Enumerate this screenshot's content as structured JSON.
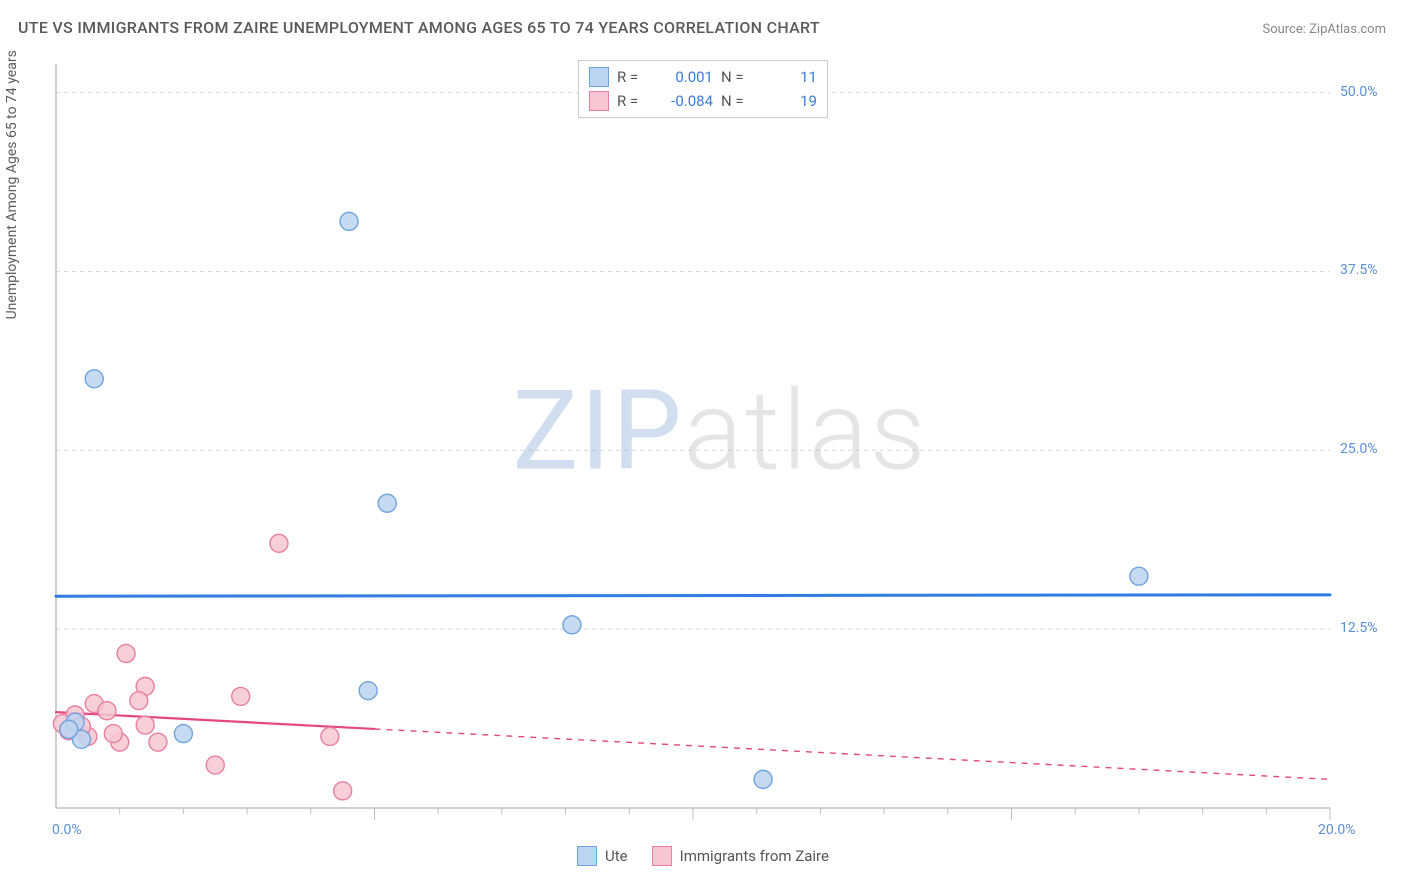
{
  "title": "UTE VS IMMIGRANTS FROM ZAIRE UNEMPLOYMENT AMONG AGES 65 TO 74 YEARS CORRELATION CHART",
  "source": "Source: ZipAtlas.com",
  "y_axis_label": "Unemployment Among Ages 65 to 74 years",
  "watermark": {
    "zip": "ZIP",
    "atlas": "atlas"
  },
  "chart": {
    "type": "scatter",
    "background_color": "#ffffff",
    "grid_color": "#d8d8d8",
    "axis_color": "#bfbfbf",
    "tick_label_color": "#5a8fd6",
    "xlim": [
      0,
      20
    ],
    "ylim": [
      0,
      52
    ],
    "y_ticks": [
      {
        "v": 12.5,
        "label": "12.5%"
      },
      {
        "v": 25.0,
        "label": "25.0%"
      },
      {
        "v": 37.5,
        "label": "37.5%"
      },
      {
        "v": 50.0,
        "label": "50.0%"
      }
    ],
    "x_ticks_major": [
      5,
      10,
      15,
      20
    ],
    "x_ticks_minor_step": 1,
    "x_origin_label": "0.0%",
    "x_max_label": "20.0%",
    "series": [
      {
        "key": "ute",
        "label": "Ute",
        "fill": "#bcd5f0",
        "stroke": "#6fa3dd",
        "marker_r": 9,
        "points": [
          {
            "x": 0.6,
            "y": 30.0
          },
          {
            "x": 4.6,
            "y": 41.0
          },
          {
            "x": 5.2,
            "y": 21.3
          },
          {
            "x": 8.1,
            "y": 12.8
          },
          {
            "x": 4.9,
            "y": 8.2
          },
          {
            "x": 2.0,
            "y": 5.2
          },
          {
            "x": 0.4,
            "y": 4.8
          },
          {
            "x": 0.3,
            "y": 6.0
          },
          {
            "x": 11.1,
            "y": 2.0
          },
          {
            "x": 17.0,
            "y": 16.2
          },
          {
            "x": 0.2,
            "y": 5.5
          }
        ],
        "regression": {
          "y1": 14.8,
          "y2": 14.9,
          "solid_until_x": 20.0,
          "color": "#2f7be0",
          "width": 3
        },
        "stats": {
          "R": "0.001",
          "N": "11"
        }
      },
      {
        "key": "zaire",
        "label": "Immigrants from Zaire",
        "fill": "#f6c7d2",
        "stroke": "#e87fa0",
        "marker_r": 9,
        "points": [
          {
            "x": 3.5,
            "y": 18.5
          },
          {
            "x": 1.1,
            "y": 10.8
          },
          {
            "x": 1.4,
            "y": 8.5
          },
          {
            "x": 1.3,
            "y": 7.5
          },
          {
            "x": 0.6,
            "y": 7.3
          },
          {
            "x": 0.3,
            "y": 6.5
          },
          {
            "x": 2.9,
            "y": 7.8
          },
          {
            "x": 0.1,
            "y": 5.9
          },
          {
            "x": 0.2,
            "y": 5.4
          },
          {
            "x": 0.5,
            "y": 5.0
          },
          {
            "x": 0.8,
            "y": 6.8
          },
          {
            "x": 1.0,
            "y": 4.6
          },
          {
            "x": 1.6,
            "y": 4.6
          },
          {
            "x": 1.4,
            "y": 5.8
          },
          {
            "x": 4.3,
            "y": 5.0
          },
          {
            "x": 2.5,
            "y": 3.0
          },
          {
            "x": 4.5,
            "y": 1.2
          },
          {
            "x": 0.4,
            "y": 5.7
          },
          {
            "x": 0.9,
            "y": 5.2
          }
        ],
        "regression": {
          "y1": 6.7,
          "y2": 2.0,
          "solid_until_x": 5.0,
          "color": "#e6487c",
          "width": 2.2
        },
        "stats": {
          "R": "-0.084",
          "N": "19"
        }
      }
    ],
    "legend_top": {
      "r_label": "R =",
      "n_label": "N ="
    }
  }
}
